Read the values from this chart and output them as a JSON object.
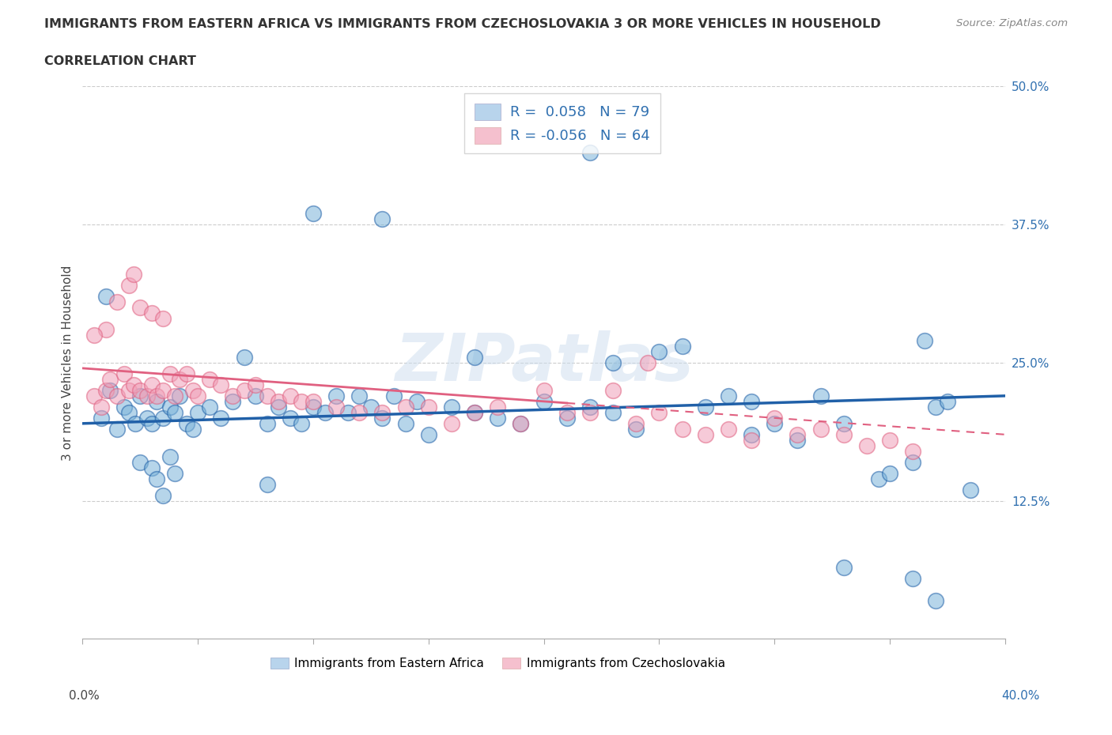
{
  "title_line1": "IMMIGRANTS FROM EASTERN AFRICA VS IMMIGRANTS FROM CZECHOSLOVAKIA 3 OR MORE VEHICLES IN HOUSEHOLD",
  "title_line2": "CORRELATION CHART",
  "source": "Source: ZipAtlas.com",
  "xmin": 0.0,
  "xmax": 40.0,
  "ymin": 0.0,
  "ymax": 50.0,
  "blue_R": 0.058,
  "blue_N": 79,
  "pink_R": -0.056,
  "pink_N": 64,
  "blue_color": "#7ab3d9",
  "pink_color": "#f0a0b8",
  "blue_line_color": "#2060a8",
  "pink_line_color": "#e06080",
  "blue_label": "Immigrants from Eastern Africa",
  "pink_label": "Immigrants from Czechoslovakia",
  "watermark": "ZIPatlas",
  "background_color": "#ffffff",
  "grid_color": "#cccccc",
  "ytick_color": "#3070b0",
  "title_color": "#333333",
  "source_color": "#888888",
  "blue_dots_x": [
    0.8,
    1.2,
    1.5,
    1.8,
    2.0,
    2.3,
    2.5,
    2.8,
    3.0,
    3.2,
    3.5,
    3.8,
    4.0,
    4.2,
    4.5,
    4.8,
    5.0,
    5.5,
    6.0,
    6.5,
    7.0,
    7.5,
    8.0,
    8.5,
    9.0,
    9.5,
    10.0,
    10.5,
    11.0,
    11.5,
    12.0,
    12.5,
    13.0,
    13.5,
    14.0,
    14.5,
    15.0,
    16.0,
    17.0,
    18.0,
    19.0,
    20.0,
    21.0,
    22.0,
    23.0,
    24.0,
    25.0,
    26.0,
    27.0,
    28.0,
    29.0,
    30.0,
    31.0,
    32.0,
    33.0,
    34.5,
    35.0,
    36.0,
    37.0,
    38.5,
    10.0,
    13.0,
    17.0,
    22.0,
    29.0,
    37.0,
    33.0,
    36.0,
    2.5,
    3.0,
    3.2,
    3.5,
    3.8,
    4.0,
    1.0,
    8.0,
    23.0,
    36.5,
    37.5
  ],
  "blue_dots_y": [
    20.0,
    22.5,
    19.0,
    21.0,
    20.5,
    19.5,
    22.0,
    20.0,
    19.5,
    21.5,
    20.0,
    21.0,
    20.5,
    22.0,
    19.5,
    19.0,
    20.5,
    21.0,
    20.0,
    21.5,
    25.5,
    22.0,
    19.5,
    21.0,
    20.0,
    19.5,
    21.0,
    20.5,
    22.0,
    20.5,
    22.0,
    21.0,
    20.0,
    22.0,
    19.5,
    21.5,
    18.5,
    21.0,
    20.5,
    20.0,
    19.5,
    21.5,
    20.0,
    21.0,
    20.5,
    19.0,
    26.0,
    26.5,
    21.0,
    22.0,
    18.5,
    19.5,
    18.0,
    22.0,
    19.5,
    14.5,
    15.0,
    16.0,
    21.0,
    13.5,
    38.5,
    38.0,
    25.5,
    44.0,
    21.5,
    3.5,
    6.5,
    5.5,
    16.0,
    15.5,
    14.5,
    13.0,
    16.5,
    15.0,
    31.0,
    14.0,
    25.0,
    27.0,
    21.5
  ],
  "pink_dots_x": [
    0.5,
    0.8,
    1.0,
    1.2,
    1.5,
    1.8,
    2.0,
    2.2,
    2.5,
    2.8,
    3.0,
    3.2,
    3.5,
    3.8,
    4.0,
    4.2,
    4.5,
    4.8,
    5.0,
    5.5,
    6.0,
    6.5,
    7.0,
    7.5,
    8.0,
    8.5,
    9.0,
    9.5,
    10.0,
    11.0,
    12.0,
    13.0,
    14.0,
    15.0,
    16.0,
    17.0,
    18.0,
    19.0,
    20.0,
    21.0,
    22.0,
    23.0,
    24.0,
    25.0,
    26.0,
    27.0,
    28.0,
    29.0,
    30.0,
    31.0,
    32.0,
    33.0,
    34.0,
    35.0,
    36.0,
    1.5,
    2.5,
    3.0,
    3.5,
    2.0,
    1.0,
    0.5,
    2.2,
    24.5
  ],
  "pink_dots_y": [
    22.0,
    21.0,
    22.5,
    23.5,
    22.0,
    24.0,
    22.5,
    23.0,
    22.5,
    22.0,
    23.0,
    22.0,
    22.5,
    24.0,
    22.0,
    23.5,
    24.0,
    22.5,
    22.0,
    23.5,
    23.0,
    22.0,
    22.5,
    23.0,
    22.0,
    21.5,
    22.0,
    21.5,
    21.5,
    21.0,
    20.5,
    20.5,
    21.0,
    21.0,
    19.5,
    20.5,
    21.0,
    19.5,
    22.5,
    20.5,
    20.5,
    22.5,
    19.5,
    20.5,
    19.0,
    18.5,
    19.0,
    18.0,
    20.0,
    18.5,
    19.0,
    18.5,
    17.5,
    18.0,
    17.0,
    30.5,
    30.0,
    29.5,
    29.0,
    32.0,
    28.0,
    27.5,
    33.0,
    25.0
  ],
  "blue_line_start_x": 0.0,
  "blue_line_start_y": 19.5,
  "blue_line_end_x": 40.0,
  "blue_line_end_y": 22.0,
  "pink_line_start_x": 0.0,
  "pink_line_start_y": 24.5,
  "pink_line_end_x": 40.0,
  "pink_line_end_y": 18.5,
  "pink_solid_end_x": 21.0,
  "pink_dashed_start_x": 21.0
}
